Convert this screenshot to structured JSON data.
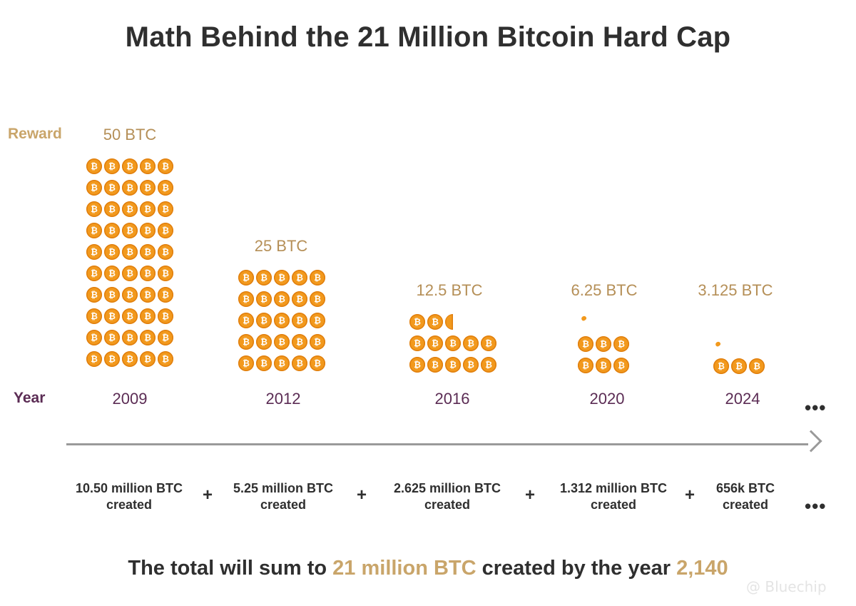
{
  "title": "Math Behind the 21 Million Bitcoin Hard Cap",
  "labels": {
    "reward": "Reward",
    "year": "Year"
  },
  "coin_symbol": "₿",
  "colors": {
    "coin": "#f2991d",
    "reward_text": "#c9a56a",
    "year_text": "#5b2c54",
    "highlight": "#c9a56a"
  },
  "epochs": [
    {
      "reward": "50 BTC",
      "year": "2009",
      "created_line1": "10.50 million BTC",
      "created_line2": "created",
      "coins": 50
    },
    {
      "reward": "25 BTC",
      "year": "2012",
      "created_line1": "5.25 million BTC",
      "created_line2": "created",
      "coins": 25
    },
    {
      "reward": "12.5 BTC",
      "year": "2016",
      "created_line1": "2.625 million BTC",
      "created_line2": "created",
      "coins": 12.5
    },
    {
      "reward": "6.25 BTC",
      "year": "2020",
      "created_line1": "1.312 million BTC",
      "created_line2": "created",
      "coins": 6.25
    },
    {
      "reward": "3.125 BTC",
      "year": "2024",
      "created_line1": "656k BTC",
      "created_line2": "created",
      "coins": 3.125
    }
  ],
  "plus_sign": "+",
  "ellipsis": "•••",
  "summary": {
    "prefix": "The total will sum to ",
    "amount": "21 million BTC",
    "middle": " created by the year ",
    "year": "2,140"
  },
  "watermark": "@ Bluechip"
}
